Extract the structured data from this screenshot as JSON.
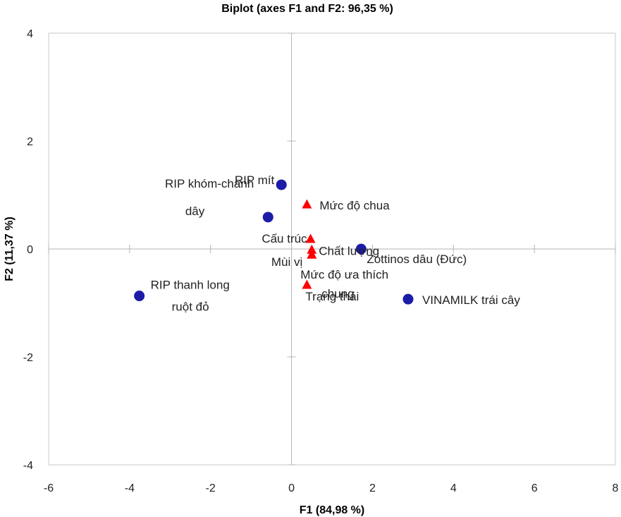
{
  "chart_data": {
    "type": "scatter",
    "title": "Biplot (axes F1 and F2: 96,35 %)",
    "xlabel": "F1 (84,98 %)",
    "ylabel": "F2 (11,37 %)",
    "xlim": [
      -6,
      8
    ],
    "ylim": [
      -4,
      4
    ],
    "xticks": [
      -6,
      -4,
      -2,
      0,
      2,
      4,
      6,
      8
    ],
    "yticks": [
      -4,
      -2,
      0,
      2,
      4
    ],
    "grid": false,
    "colors": {
      "observations": "#1c1ca8",
      "variables": "#ff0000"
    },
    "series": [
      {
        "marker": "circle",
        "points": [
          {
            "x": -0.25,
            "y": 1.19,
            "label": [
              "RIP mít"
            ]
          },
          {
            "x": -0.58,
            "y": 0.59,
            "label": [
              "RIP khóm-chanh",
              "dây"
            ]
          },
          {
            "x": 1.72,
            "y": 0.0,
            "label": [
              "Zottinos dâu (Đức)"
            ]
          },
          {
            "x": -3.76,
            "y": -0.87,
            "label": [
              "RIP thanh long",
              "ruột đỏ"
            ]
          },
          {
            "x": 2.88,
            "y": -0.93,
            "label": [
              "VINAMILK trái cây"
            ]
          }
        ]
      },
      {
        "marker": "triangle",
        "points": [
          {
            "x": 0.38,
            "y": 0.81,
            "label": [
              "Mức độ chua"
            ]
          },
          {
            "x": 0.47,
            "y": 0.17,
            "label": [
              "Cấu trúc"
            ]
          },
          {
            "x": 0.5,
            "y": -0.03,
            "label": [
              "Chất lượng"
            ]
          },
          {
            "x": 0.5,
            "y": -0.12,
            "label": [
              "Mùi vị"
            ]
          },
          {
            "x": 0.5,
            "y": -0.12,
            "label": [
              "Mức độ ưa thích",
              "chung"
            ]
          },
          {
            "x": 0.38,
            "y": -0.68,
            "label": [
              "Trạng thái"
            ]
          }
        ]
      }
    ]
  }
}
